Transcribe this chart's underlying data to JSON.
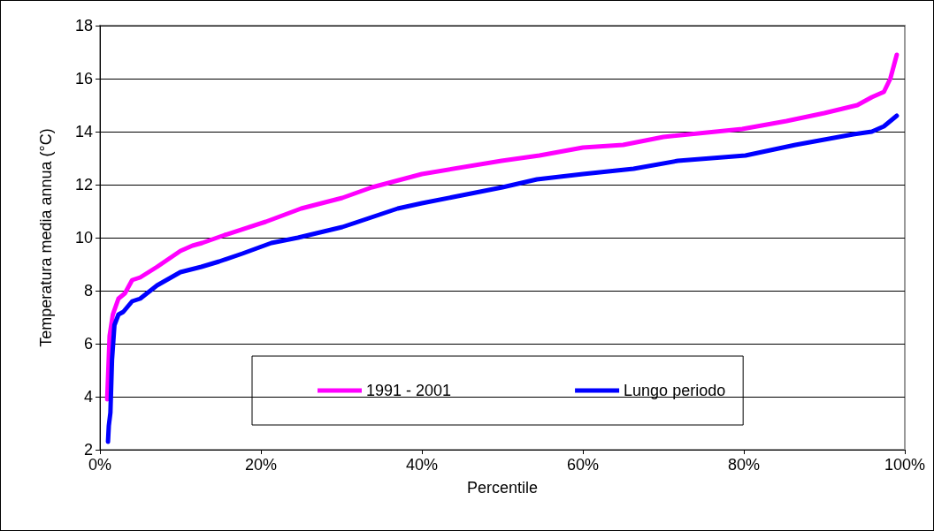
{
  "chart_data": {
    "type": "line",
    "xlabel": "Percentile",
    "ylabel": "Temperatura media annua (°C)",
    "xlim": [
      0,
      100
    ],
    "xticks": [
      {
        "value": 0,
        "label": "0%"
      },
      {
        "value": 20,
        "label": "20%"
      },
      {
        "value": 40,
        "label": "40%"
      },
      {
        "value": 60,
        "label": "60%"
      },
      {
        "value": 80,
        "label": "80%"
      },
      {
        "value": 100,
        "label": "100%"
      }
    ],
    "ylim": [
      2,
      18
    ],
    "yticks": [
      2,
      4,
      6,
      8,
      10,
      12,
      14,
      16,
      18
    ],
    "grid": "y",
    "legend": "bottom",
    "marker": "none",
    "line_style": "solid",
    "series": [
      {
        "name": "1991 - 2001",
        "color": "#ff00ff",
        "x": [
          0.9,
          1.2,
          1.6,
          2.3,
          3.1,
          4,
          5,
          7.1,
          10,
          11.5,
          12.7,
          15.5,
          20.6,
          25,
          30.1,
          33.8,
          40,
          49.9,
          54.6,
          60,
          65,
          70,
          79.8,
          85.3,
          90,
          94.1,
          95.9,
          97.4,
          98.2,
          99
        ],
        "values": [
          3.9,
          6.3,
          7.1,
          7.7,
          7.9,
          8.4,
          8.5,
          8.9,
          9.5,
          9.7,
          9.8,
          10.1,
          10.6,
          11.1,
          11.5,
          11.9,
          12.4,
          12.9,
          13.1,
          13.4,
          13.5,
          13.8,
          14.1,
          14.4,
          14.7,
          15,
          15.3,
          15.5,
          16,
          16.9
        ]
      },
      {
        "name": "Lungo periodo",
        "color": "#0000ff",
        "x": [
          1,
          1.1,
          1.3,
          1.5,
          1.8,
          2.3,
          2.9,
          4,
          5,
          7.1,
          10,
          12.6,
          14.8,
          17.7,
          21.3,
          24.6,
          30.1,
          37,
          40,
          45,
          50,
          54.3,
          60,
          66.3,
          71.8,
          80.2,
          86.4,
          93.6,
          95.9,
          97.4,
          99
        ],
        "values": [
          2.3,
          2.9,
          3.4,
          5.4,
          6.7,
          7.1,
          7.2,
          7.6,
          7.7,
          8.2,
          8.7,
          8.9,
          9.1,
          9.4,
          9.8,
          10,
          10.4,
          11.1,
          11.3,
          11.6,
          11.9,
          12.2,
          12.4,
          12.6,
          12.9,
          13.1,
          13.5,
          13.9,
          14,
          14.2,
          14.6
        ]
      }
    ]
  }
}
